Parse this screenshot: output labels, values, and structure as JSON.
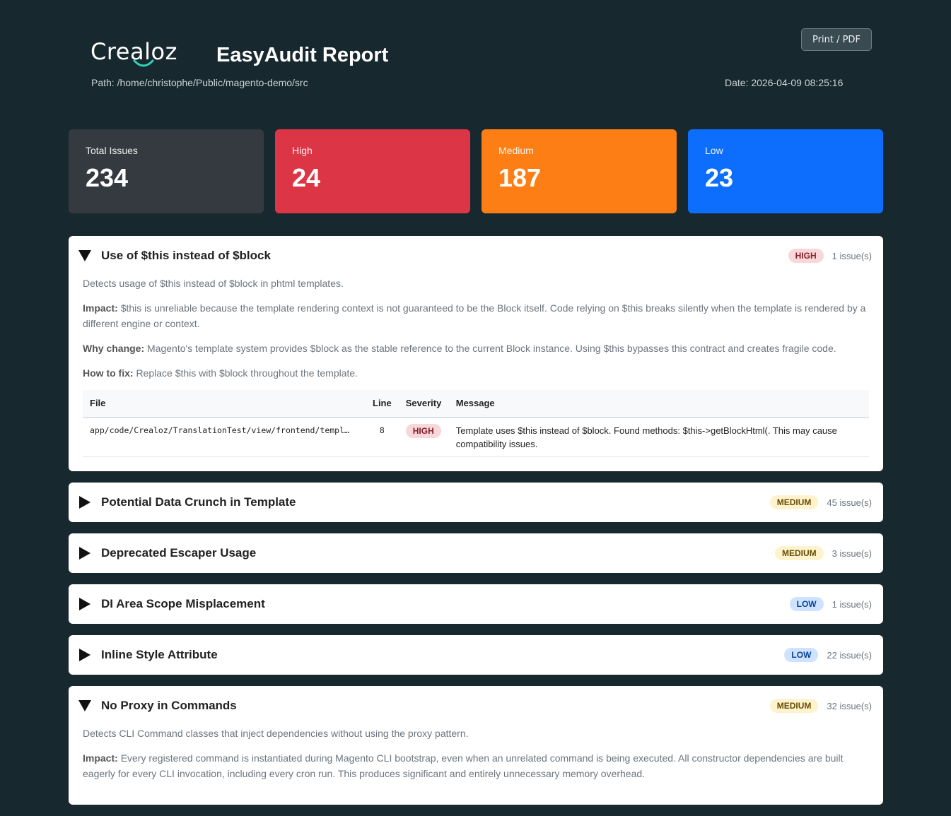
{
  "header": {
    "logo_text": "Crealoz",
    "title": "EasyAudit Report",
    "path": "Path: /home/christophe/Public/magento-demo/src",
    "date": "Date: 2026-04-09 08:25:16",
    "print_label": "Print / PDF"
  },
  "summary": {
    "total": {
      "label": "Total Issues",
      "value": "234"
    },
    "high": {
      "label": "High",
      "value": "24"
    },
    "medium": {
      "label": "Medium",
      "value": "187"
    },
    "low": {
      "label": "Low",
      "value": "23"
    }
  },
  "colors": {
    "background": "#18282f",
    "high": "#dc3545",
    "medium": "#fd7e14",
    "low": "#0d6efd",
    "total": "#343a40",
    "logo_accent": "#2ed3b7"
  },
  "sections": [
    {
      "title": "Use of $this instead of $block",
      "severity": "HIGH",
      "count": "1 issue(s)",
      "expanded": true,
      "description": "Detects usage of $this instead of $block in phtml templates.",
      "impact_label": "Impact:",
      "impact": "$this is unreliable because the template rendering context is not guaranteed to be the Block itself. Code relying on $this breaks silently when the template is rendered by a different engine or context.",
      "why_label": "Why change:",
      "why": "Magento's template system provides $block as the stable reference to the current Block instance. Using $this bypasses this contract and creates fragile code.",
      "fix_label": "How to fix:",
      "fix": "Replace $this with $block throughout the template.",
      "table": {
        "headers": {
          "file": "File",
          "line": "Line",
          "severity": "Severity",
          "message": "Message"
        },
        "rows": [
          {
            "file": "app/code/Crealoz/TranslationTest/view/frontend/templ…",
            "line": "8",
            "severity": "HIGH",
            "message": "Template uses $this instead of $block. Found methods: $this->getBlockHtml(. This may cause compatibility issues."
          }
        ]
      }
    },
    {
      "title": "Potential Data Crunch in Template",
      "severity": "MEDIUM",
      "count": "45 issue(s)",
      "expanded": false
    },
    {
      "title": "Deprecated Escaper Usage",
      "severity": "MEDIUM",
      "count": "3 issue(s)",
      "expanded": false
    },
    {
      "title": "DI Area Scope Misplacement",
      "severity": "LOW",
      "count": "1 issue(s)",
      "expanded": false
    },
    {
      "title": "Inline Style Attribute",
      "severity": "LOW",
      "count": "22 issue(s)",
      "expanded": false
    },
    {
      "title": "No Proxy in Commands",
      "severity": "MEDIUM",
      "count": "32 issue(s)",
      "expanded": true,
      "description": "Detects CLI Command classes that inject dependencies without using the proxy pattern.",
      "impact_label": "Impact:",
      "impact": "Every registered command is instantiated during Magento CLI bootstrap, even when an unrelated command is being executed. All constructor dependencies are built eagerly for every CLI invocation, including every cron run. This produces significant and entirely unnecessary memory overhead."
    }
  ]
}
